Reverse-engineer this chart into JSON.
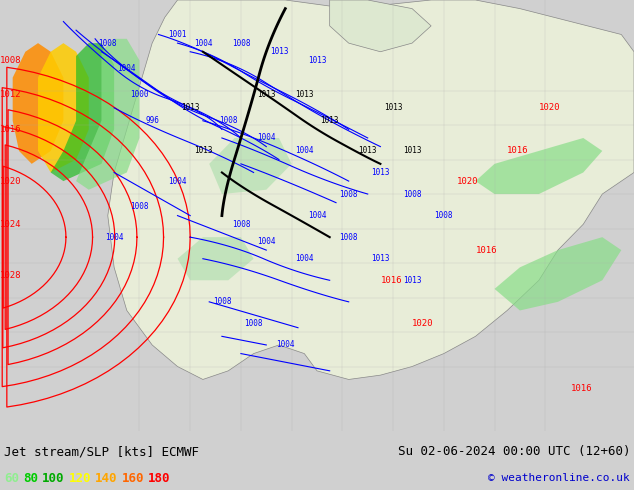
{
  "title_left": "Jet stream/SLP [kts] ECMWF",
  "title_right": "Su 02-06-2024 00:00 UTC (12+60)",
  "copyright": "© weatheronline.co.uk",
  "legend_values": [
    "60",
    "80",
    "100",
    "120",
    "140",
    "160",
    "180"
  ],
  "legend_colors": [
    "#90ee90",
    "#00cc00",
    "#00aa00",
    "#ffff00",
    "#ffa500",
    "#ff6600",
    "#ff0000"
  ],
  "bg_color": "#e8e8e8",
  "map_bg": "#f0f0f0",
  "fig_width": 6.34,
  "fig_height": 4.9,
  "dpi": 100
}
